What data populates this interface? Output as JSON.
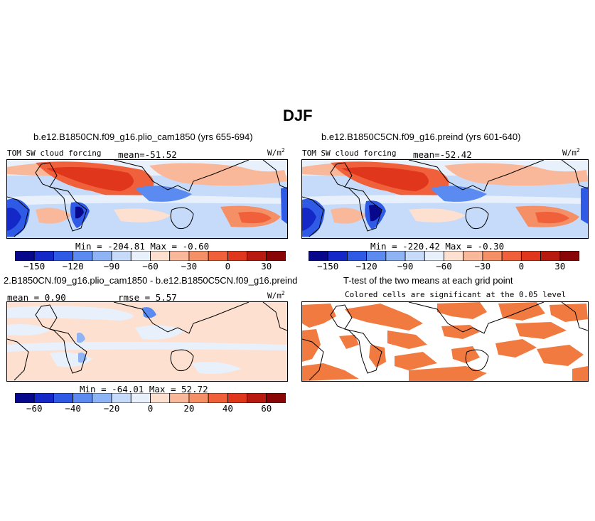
{
  "figure": {
    "title": "DJF"
  },
  "colors": {
    "fc": [
      "#08088c",
      "#1428c8",
      "#2f5ae6",
      "#5b8af0",
      "#8fb4f5",
      "#c6dbfa",
      "#e8f0fc",
      "#fde0d0",
      "#f9b89a",
      "#f59066",
      "#f0603a",
      "#e0361c",
      "#b81a10",
      "#8a0606"
    ],
    "land": "#000000",
    "sig": "#f07a40"
  },
  "panels": [
    {
      "id": "case1",
      "title": "b.e12.B1850CN.f09_g16.plio_cam1850 (yrs 655-694)",
      "var_label": "TOM SW cloud forcing",
      "mean_label": "mean=",
      "mean_value": "-51.52",
      "unit": "W/m",
      "unit_sup": "2",
      "min_label": "Min =",
      "min_value": "-204.81",
      "max_label": "Max =",
      "max_value": "-0.60"
    },
    {
      "id": "case2",
      "title": "b.e12.B1850C5CN.f09_g16.preind (yrs 601-640)",
      "var_label": "TOM SW cloud forcing",
      "mean_label": "mean=",
      "mean_value": "-52.42",
      "unit": "W/m",
      "unit_sup": "2",
      "min_label": "Min =",
      "min_value": "-220.42",
      "max_label": "Max =",
      "max_value": "-0.30"
    },
    {
      "id": "diff",
      "title": "2.B1850CN.f09_g16.plio_cam1850 - b.e12.B1850C5CN.f09_g16.preind",
      "mean_label": "mean =",
      "mean_value": "0.90",
      "rmse_label": "rmse =",
      "rmse_value": "5.57",
      "unit": "W/m",
      "unit_sup": "2",
      "min_label": "Min =",
      "min_value": "-64.01",
      "max_label": "Max =",
      "max_value": "52.72"
    },
    {
      "id": "ttest",
      "title": "T-test of the two means at each grid point",
      "subtitle": "Colored cells are significant at the 0.05 level"
    }
  ],
  "chart_data": [
    {
      "type": "heatmap",
      "panel": "case1",
      "title": "b.e12.B1850CN.f09_g16.plio_cam1850 (yrs 655-694)",
      "variable": "TOM SW cloud forcing",
      "units": "W/m2",
      "mean": -51.52,
      "min": -204.81,
      "max": -0.6,
      "colorbar": {
        "levels": [
          -165,
          -150,
          -135,
          -120,
          -105,
          -90,
          -75,
          -60,
          -45,
          -30,
          -15,
          0,
          15,
          30,
          45
        ],
        "tick_labels": [
          "-150",
          "-120",
          "-90",
          "-60",
          "-30",
          "0",
          "30"
        ]
      }
    },
    {
      "type": "heatmap",
      "panel": "case2",
      "title": "b.e12.B1850C5CN.f09_g16.preind (yrs 601-640)",
      "variable": "TOM SW cloud forcing",
      "units": "W/m2",
      "mean": -52.42,
      "min": -220.42,
      "max": -0.3,
      "colorbar": {
        "levels": [
          -165,
          -150,
          -135,
          -120,
          -105,
          -90,
          -75,
          -60,
          -45,
          -30,
          -15,
          0,
          15,
          30,
          45
        ],
        "tick_labels": [
          "-150",
          "-120",
          "-90",
          "-60",
          "-30",
          "0",
          "30"
        ]
      }
    },
    {
      "type": "heatmap",
      "panel": "diff",
      "title": "2.B1850CN.f09_g16.plio_cam1850 - b.e12.B1850C5CN.f09_g16.preind",
      "units": "W/m2",
      "mean": 0.9,
      "rmse": 5.57,
      "min": -64.01,
      "max": 52.72,
      "colorbar": {
        "levels": [
          -70,
          -60,
          -50,
          -40,
          -30,
          -20,
          -10,
          0,
          10,
          20,
          30,
          40,
          50,
          60,
          70
        ],
        "tick_labels": [
          "-60",
          "-40",
          "-20",
          "0",
          "20",
          "40",
          "60"
        ]
      }
    },
    {
      "type": "heatmap",
      "panel": "ttest",
      "title": "T-test of the two means at each grid point",
      "note": "Colored cells are significant at the 0.05 level",
      "significance_level": 0.05
    }
  ]
}
